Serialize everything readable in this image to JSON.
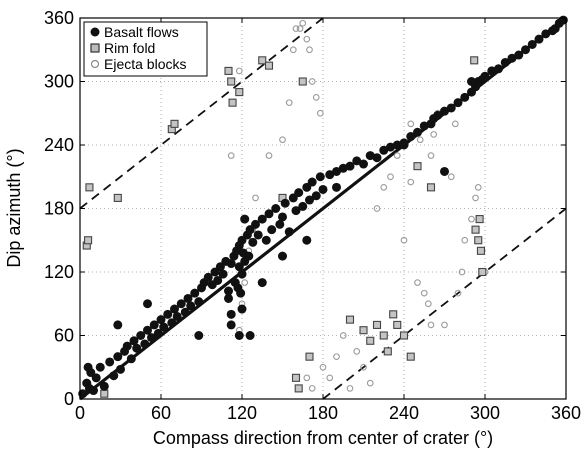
{
  "chart_data": {
    "type": "scatter",
    "title": "",
    "xlabel": "Compass direction from center of crater (°)",
    "ylabel": "Dip azimuth (°)",
    "xlim": [
      0,
      360
    ],
    "ylim": [
      0,
      360
    ],
    "xticks": [
      "0",
      "60",
      "120",
      "180",
      "240",
      "300",
      "360"
    ],
    "yticks": [
      "0",
      "60",
      "120",
      "180",
      "240",
      "300",
      "360"
    ],
    "xtick_values": [
      0,
      60,
      120,
      180,
      240,
      300,
      360
    ],
    "ytick_values": [
      0,
      60,
      120,
      180,
      240,
      300,
      360
    ],
    "grid": true,
    "legend_position": "top-left",
    "colors": {
      "basalt": "#111111",
      "rim": "#888888",
      "ejecta": "#9a9a9a",
      "line": "#111111"
    },
    "series": [
      {
        "name": "Basalt flows",
        "marker": "filled-circle",
        "x": [
          2,
          5,
          7,
          8,
          10,
          12,
          15,
          18,
          22,
          25,
          28,
          30,
          33,
          35,
          38,
          40,
          42,
          45,
          48,
          50,
          53,
          55,
          58,
          60,
          62,
          65,
          68,
          70,
          72,
          75,
          78,
          80,
          82,
          85,
          88,
          90,
          92,
          95,
          98,
          100,
          102,
          104,
          106,
          108,
          110,
          110,
          112,
          112,
          114,
          115,
          116,
          117,
          118,
          118,
          119,
          120,
          120,
          121,
          122,
          122,
          124,
          125,
          126,
          128,
          130,
          132,
          135,
          138,
          140,
          142,
          145,
          148,
          150,
          152,
          155,
          158,
          160,
          162,
          165,
          168,
          170,
          172,
          175,
          178,
          180,
          185,
          190,
          195,
          200,
          205,
          210,
          215,
          220,
          225,
          230,
          235,
          240,
          245,
          250,
          255,
          260,
          262,
          265,
          270,
          275,
          280,
          285,
          290,
          293,
          295,
          298,
          300,
          305,
          310,
          315,
          320,
          325,
          330,
          335,
          340,
          345,
          350,
          352,
          355,
          358,
          6,
          28,
          50,
          88,
          112,
          118,
          120,
          126,
          135,
          150,
          168,
          190,
          240,
          270,
          290
        ],
        "y": [
          5,
          15,
          10,
          25,
          8,
          20,
          30,
          12,
          35,
          22,
          40,
          28,
          45,
          50,
          38,
          55,
          48,
          60,
          52,
          65,
          58,
          70,
          62,
          75,
          68,
          80,
          72,
          85,
          78,
          90,
          82,
          95,
          88,
          100,
          92,
          105,
          110,
          115,
          108,
          120,
          112,
          125,
          118,
          130,
          102,
          95,
          128,
          80,
          135,
          110,
          140,
          105,
          145,
          125,
          100,
          150,
          118,
          138,
          130,
          170,
          155,
          135,
          160,
          148,
          165,
          155,
          170,
          150,
          175,
          160,
          180,
          165,
          172,
          185,
          158,
          190,
          178,
          195,
          182,
          200,
          188,
          205,
          192,
          210,
          198,
          212,
          215,
          218,
          220,
          225,
          222,
          230,
          228,
          235,
          238,
          240,
          242,
          248,
          252,
          258,
          260,
          265,
          268,
          272,
          275,
          280,
          285,
          290,
          295,
          300,
          302,
          305,
          310,
          312,
          318,
          322,
          325,
          330,
          335,
          340,
          345,
          348,
          350,
          355,
          358,
          30,
          70,
          90,
          60,
          70,
          60,
          85,
          60,
          110,
          135,
          150,
          200,
          240,
          215,
          300
        ]
      },
      {
        "name": "Rim fold",
        "marker": "square",
        "x": [
          5,
          6,
          7,
          28,
          68,
          70,
          110,
          112,
          113,
          135,
          140,
          160,
          162,
          200,
          210,
          215,
          220,
          225,
          228,
          232,
          235,
          240,
          245,
          250,
          260,
          292,
          293,
          295,
          296,
          297,
          298,
          18,
          118,
          150,
          170,
          165
        ],
        "y": [
          145,
          150,
          200,
          190,
          255,
          260,
          310,
          300,
          280,
          320,
          315,
          20,
          10,
          75,
          65,
          55,
          70,
          60,
          45,
          80,
          70,
          60,
          40,
          220,
          200,
          320,
          160,
          150,
          170,
          140,
          120,
          5,
          290,
          190,
          40,
          300
        ]
      },
      {
        "name": "Ejecta blocks",
        "marker": "open-circle",
        "x": [
          118,
          120,
          122,
          125,
          128,
          130,
          140,
          150,
          155,
          160,
          165,
          168,
          170,
          172,
          175,
          178,
          180,
          185,
          190,
          195,
          200,
          205,
          210,
          215,
          220,
          225,
          230,
          235,
          240,
          245,
          250,
          255,
          258,
          260,
          262,
          265,
          270,
          275,
          280,
          285,
          290,
          293,
          295,
          298,
          300,
          118,
          112,
          158,
          163,
          168,
          172,
          245,
          252,
          260,
          278,
          283
        ],
        "y": [
          65,
          90,
          110,
          140,
          160,
          190,
          230,
          245,
          280,
          350,
          355,
          340,
          330,
          300,
          285,
          270,
          30,
          20,
          40,
          60,
          10,
          45,
          30,
          15,
          180,
          200,
          210,
          230,
          150,
          260,
          110,
          100,
          90,
          230,
          250,
          270,
          70,
          210,
          100,
          150,
          170,
          190,
          200,
          140,
          120,
          310,
          230,
          330,
          350,
          20,
          10,
          205,
          245,
          70,
          260,
          120
        ]
      }
    ],
    "fit_lines": [
      {
        "style": "solid",
        "x": [
          0,
          360
        ],
        "y": [
          0,
          360
        ]
      },
      {
        "style": "dashed",
        "x": [
          0,
          180
        ],
        "y": [
          180,
          360
        ]
      },
      {
        "style": "dashed",
        "x": [
          180,
          360
        ],
        "y": [
          0,
          180
        ]
      }
    ]
  }
}
